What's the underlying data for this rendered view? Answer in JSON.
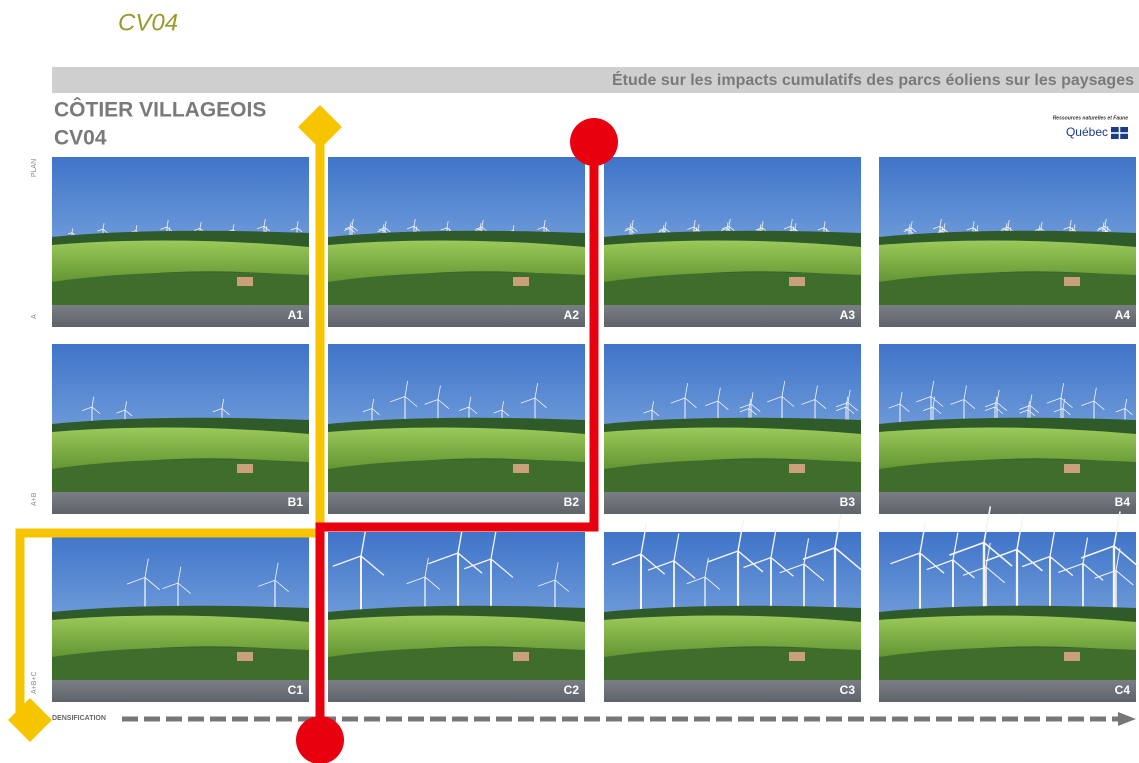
{
  "header": {
    "label": "CV04"
  },
  "banner": "Étude sur les impacts cumulatifs des parcs éoliens sur les paysages",
  "title": {
    "line1": "CÔTIER VILLAGEOIS",
    "line2": "CV04"
  },
  "logo": {
    "ministry": "Ressources naturelles et Faune",
    "province": "Québec"
  },
  "plan_label": "PLAN",
  "rows": [
    {
      "label": "A",
      "tiles": [
        "A1",
        "A2",
        "A3",
        "A4"
      ]
    },
    {
      "label": "A+B",
      "tiles": [
        "B1",
        "B2",
        "B3",
        "B4"
      ]
    },
    {
      "label": "A+B+C",
      "tiles": [
        "C1",
        "C2",
        "C3",
        "C4"
      ]
    }
  ],
  "axis": {
    "label": "DENSIFICATION"
  }
}
